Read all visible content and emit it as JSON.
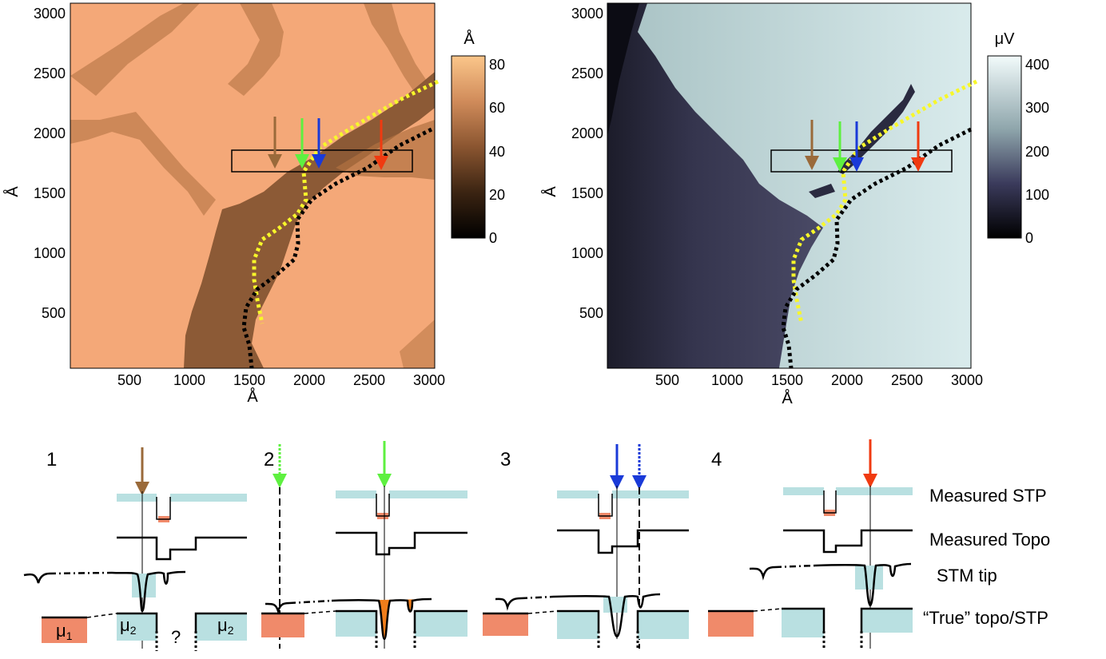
{
  "figure": {
    "colors": {
      "stp_light": "#b9e0e1",
      "salmon": "#f08a6a",
      "orange": "#f07d1a",
      "brown_arrow": "#9a6a3a",
      "green_arrow": "#5ef040",
      "blue_arrow": "#1a3ad8",
      "red_arrow": "#f03a10",
      "yellow_path": "#f7f72a"
    },
    "topo_map": {
      "colorbar_unit": "Å",
      "colorbar_ticks": [
        "80",
        "60",
        "40",
        "20",
        "0"
      ],
      "x_ticks": [
        "500",
        "1000",
        "1500",
        "2000",
        "2500",
        "3000"
      ],
      "y_ticks": [
        "3000",
        "2500",
        "2000",
        "1500",
        "1000",
        "500"
      ],
      "xlabel": "Å",
      "ylabel": "Å"
    },
    "stp_map": {
      "colorbar_unit": "μV",
      "colorbar_ticks": [
        "400",
        "300",
        "200",
        "100",
        "0"
      ],
      "x_ticks": [
        "500",
        "1000",
        "1500",
        "2000",
        "2500",
        "3000"
      ],
      "y_ticks": [
        "3000",
        "2500",
        "2000",
        "1500",
        "1000",
        "500"
      ],
      "xlabel": "Å",
      "ylabel": "Å"
    },
    "schematic": {
      "panels": [
        "1",
        "2",
        "3",
        "4"
      ],
      "row_labels": [
        "Measured STP",
        "Measured Topo",
        "STM tip",
        "“True” topo/STP"
      ],
      "mu1": "μ",
      "mu1_sub": "1",
      "mu2": "μ",
      "mu2_sub": "2",
      "unknown": "?"
    }
  }
}
